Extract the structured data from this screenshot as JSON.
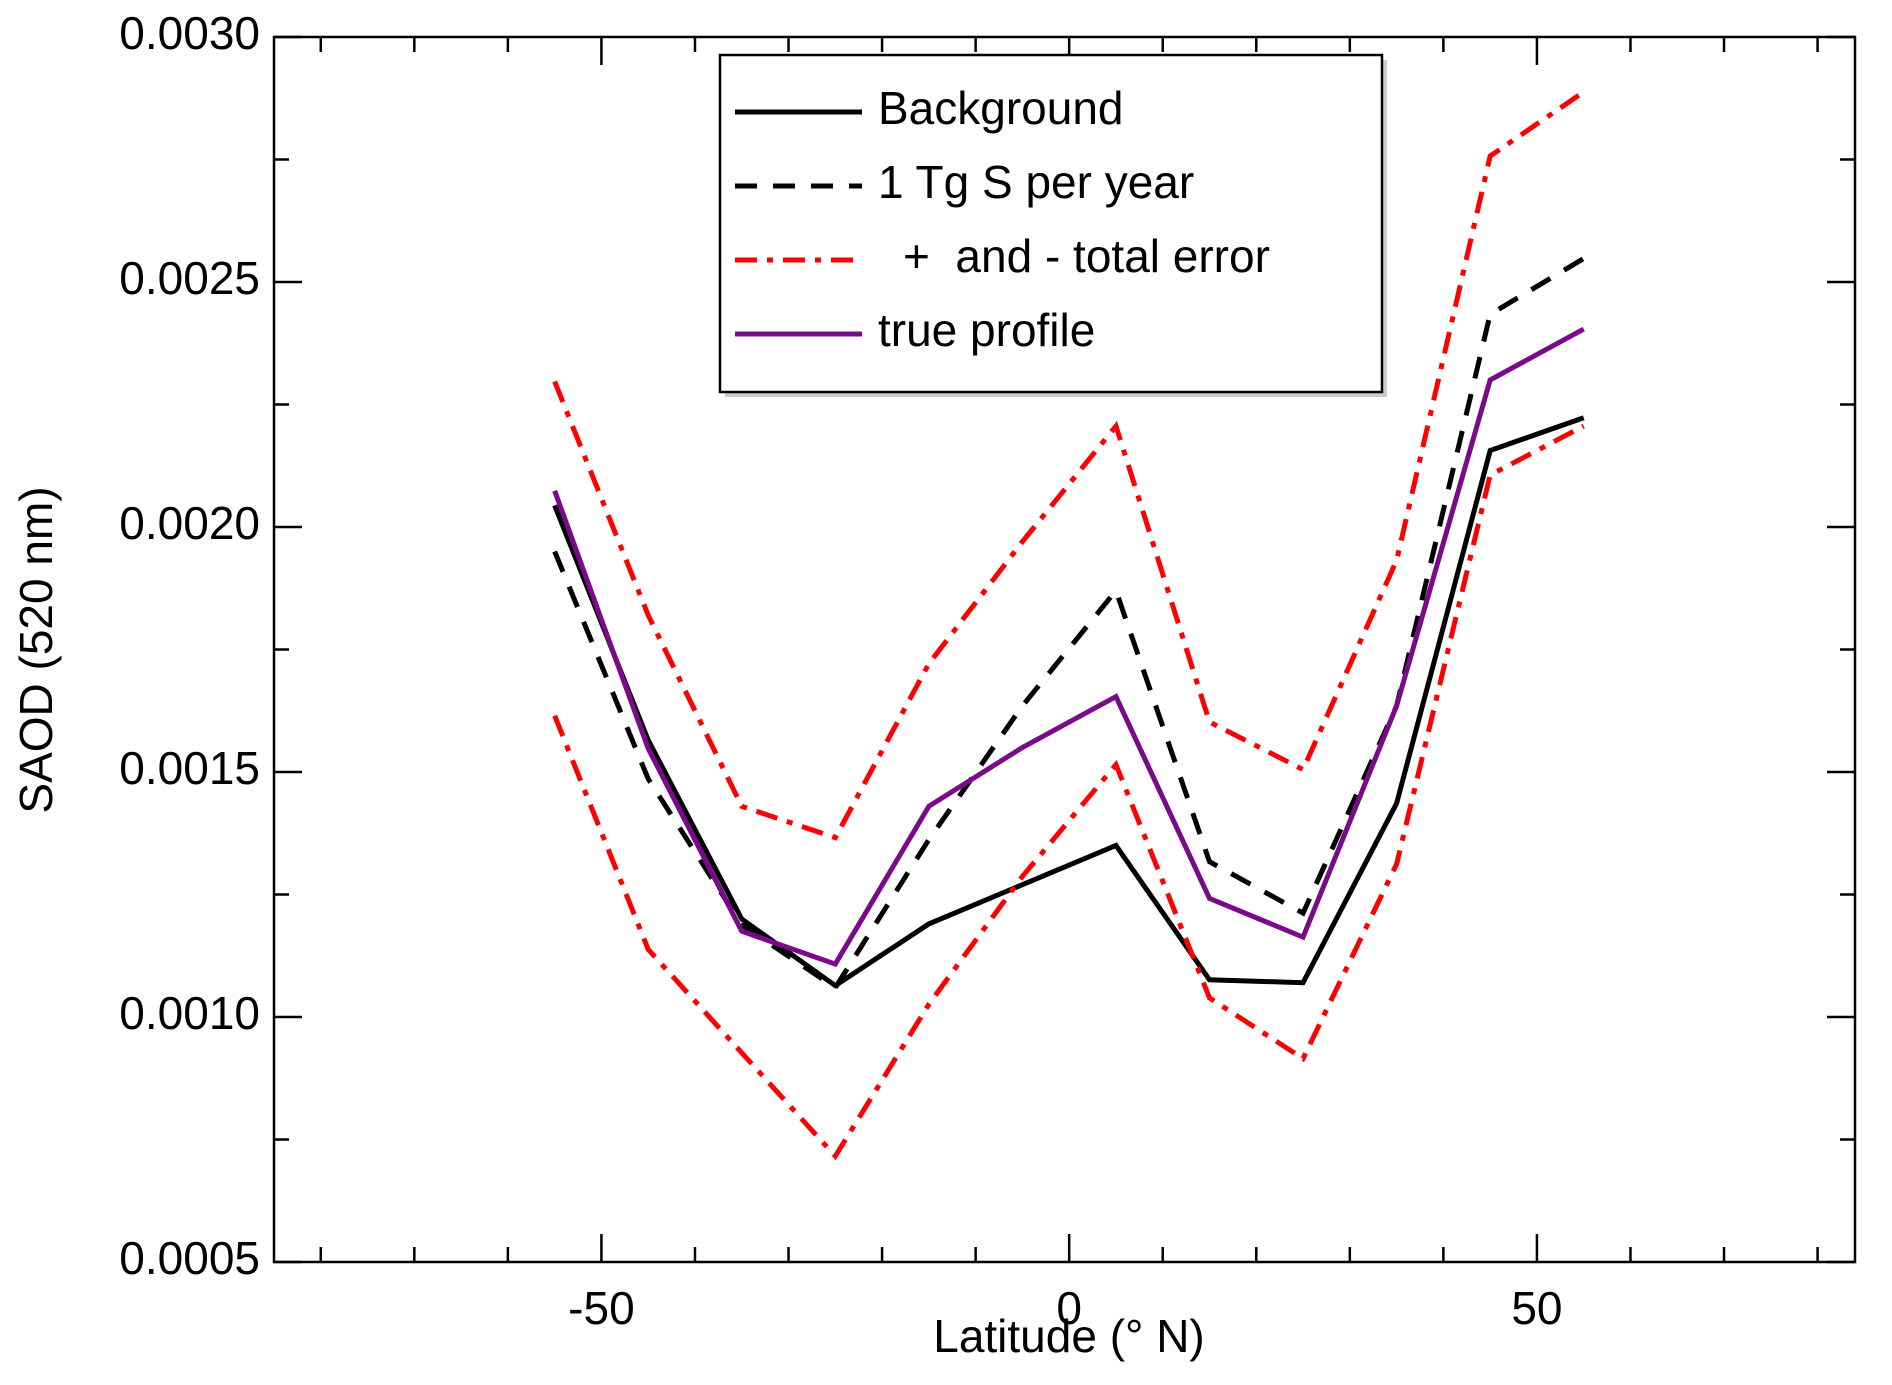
{
  "chart_data": {
    "type": "line",
    "x_label": "Latitude (° N)",
    "y_label": "SAOD (520 nm)",
    "x": [
      -55,
      -45,
      -35,
      -25,
      -15,
      -5,
      5,
      15,
      25,
      35,
      45,
      55
    ],
    "series": [
      {
        "name": "Background",
        "color": "#000000",
        "dash": "solid",
        "values": [
          0.002044,
          0.001565,
          0.0012,
          0.001064,
          0.00119,
          0.00127,
          0.00135,
          0.001076,
          0.00107,
          0.001436,
          0.002156,
          0.002223
        ]
      },
      {
        "name": "1 Tg S per year",
        "color": "#000000",
        "dash": "dashed",
        "values": [
          0.00195,
          0.001486,
          0.001188,
          0.00106,
          0.001362,
          0.001635,
          0.00187,
          0.001317,
          0.001212,
          0.001635,
          0.002434,
          0.002548
        ]
      },
      {
        "name": "+  and - total error",
        "color": "#ff0000",
        "dash": "dashdot",
        "values": [
          0.002297,
          0.00182,
          0.00143,
          0.001366,
          0.001721,
          0.00197,
          0.002206,
          0.001602,
          0.001505,
          0.001932,
          0.002757,
          0.002888
        ],
        "values_lower": [
          0.001615,
          0.001138,
          0.000927,
          0.000716,
          0.001026,
          0.001287,
          0.001515,
          0.001039,
          0.000915,
          0.001312,
          0.002106,
          0.002206
        ]
      },
      {
        "name": "true profile",
        "color": "#7b0a8a",
        "dash": "solid",
        "values": [
          0.002074,
          0.001548,
          0.001175,
          0.001108,
          0.00143,
          0.00155,
          0.001654,
          0.001242,
          0.001163,
          0.001635,
          0.0023,
          0.002404
        ]
      }
    ],
    "xlim": [
      -85,
      84
    ],
    "ylim": [
      0.0005,
      0.003
    ],
    "xticks": [
      -50,
      0,
      50
    ],
    "yticks": [
      {
        "value": 0.0005,
        "label": "0.0005"
      },
      {
        "value": 0.001,
        "label": "0.0010"
      },
      {
        "value": 0.0015,
        "label": "0.0015"
      },
      {
        "value": 0.002,
        "label": "0.0020"
      },
      {
        "value": 0.0025,
        "label": "0.0025"
      },
      {
        "value": 0.003,
        "label": "0.0030"
      }
    ],
    "xminor_ticks": [
      -80,
      -70,
      -60,
      -40,
      -30,
      -20,
      -10,
      10,
      20,
      30,
      40,
      60,
      70,
      80
    ],
    "yminor_ticks": [
      0.00075,
      0.00125,
      0.00175,
      0.00225,
      0.00275
    ],
    "legend": "top-center"
  }
}
